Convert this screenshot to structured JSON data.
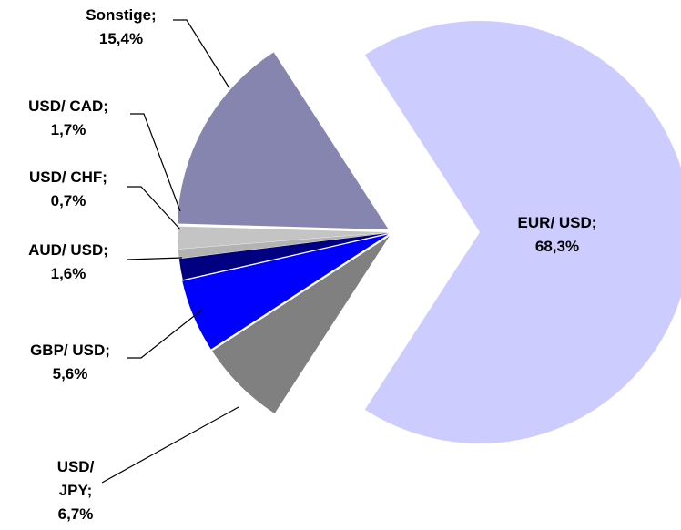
{
  "chart_data": {
    "type": "pie",
    "categories": [
      "EUR/ USD;",
      "USD/ JPY;",
      "GBP/ USD;",
      "AUD/ USD;",
      "USD/ CHF;",
      "USD/ CAD;",
      "Sonstige;"
    ],
    "values": [
      68.3,
      6.7,
      5.6,
      1.6,
      0.7,
      1.7,
      15.4
    ],
    "value_labels": [
      "68,3%",
      "6,7%",
      "5,6%",
      "1,6%",
      "0,7%",
      "1,7%",
      "15,4%"
    ],
    "colors": [
      "#ccccff",
      "#808080",
      "#0000ff",
      "#000080",
      "#b3b3b3",
      "#c4c4c4",
      "#8585b0"
    ]
  }
}
